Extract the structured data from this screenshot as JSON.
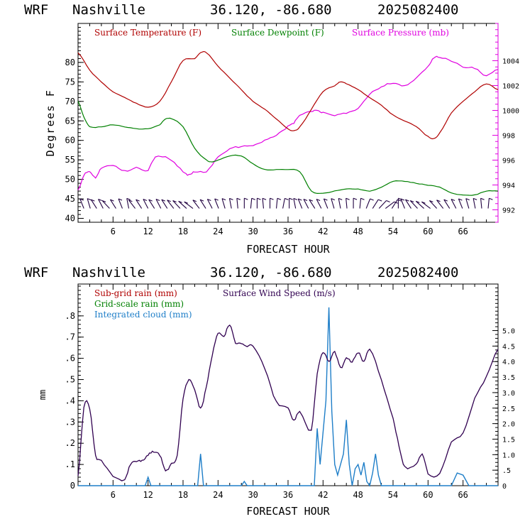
{
  "header": {
    "model": "WRF",
    "location": "Nashville",
    "coords": "36.120, -86.680",
    "run": "2025082400"
  },
  "chart_data": [
    {
      "type": "line",
      "xlabel": "FORECAST HOUR",
      "ylabel": "Degrees F",
      "xlim": [
        0,
        72
      ],
      "ylim": [
        39,
        90
      ],
      "y2lim": [
        991,
        1007
      ],
      "x_ticks": [
        "6",
        "12",
        "18",
        "24",
        "30",
        "36",
        "42",
        "48",
        "54",
        "60",
        "66"
      ],
      "y_ticks": [
        "40",
        "45",
        "50",
        "55",
        "60",
        "65",
        "70",
        "75",
        "80"
      ],
      "y2_ticks": [
        "992",
        "994",
        "996",
        "998",
        "1000",
        "1002",
        "1004"
      ],
      "legend": [
        "Surface Temperature (F)",
        "Surface Dewpoint (F)",
        "Surface Pressure (mb)"
      ],
      "colors": {
        "temperature": "#b00000",
        "dewpoint": "#008000",
        "pressure": "#e000e0",
        "wind_barbs": "#200040"
      },
      "series": [
        {
          "name": "Surface Temperature (F)",
          "axis": "left",
          "x": [
            0,
            2,
            4,
            6,
            8,
            10,
            12,
            14,
            16,
            18,
            20,
            21,
            22,
            24,
            26,
            28,
            30,
            32,
            34,
            36,
            37,
            38,
            40,
            42,
            44,
            45,
            46,
            48,
            50,
            52,
            54,
            56,
            58,
            60,
            61,
            62,
            64,
            66,
            68,
            70,
            72
          ],
          "values": [
            82.5,
            78,
            75,
            72.5,
            71,
            69.5,
            68.5,
            70,
            75,
            80.5,
            81,
            82.5,
            82.5,
            79,
            76,
            73,
            70,
            68,
            65.5,
            63,
            62.5,
            63.5,
            68,
            72.5,
            74,
            75,
            74.5,
            73,
            71,
            69,
            66.5,
            65,
            63.5,
            61,
            60.5,
            62,
            67,
            70,
            72.5,
            74.5,
            73
          ]
        },
        {
          "name": "Surface Dewpoint (F)",
          "axis": "left",
          "x": [
            0,
            1,
            2,
            4,
            6,
            8,
            10,
            12,
            14,
            15,
            16,
            18,
            20,
            22,
            23,
            24,
            26,
            28,
            30,
            32,
            34,
            36,
            38,
            40,
            42,
            44,
            46,
            48,
            50,
            52,
            54,
            56,
            58,
            60,
            62,
            64,
            66,
            68,
            70,
            72
          ],
          "values": [
            70,
            66,
            63.5,
            63.5,
            64,
            63.5,
            63,
            63,
            64,
            65.5,
            65.5,
            63.5,
            58,
            55,
            54.5,
            55,
            56,
            56,
            54,
            52.5,
            52.5,
            52.5,
            52,
            47,
            46.5,
            47,
            47.5,
            47.5,
            47,
            48,
            49.5,
            49.5,
            49,
            48.5,
            48,
            46.5,
            46,
            46,
            47,
            47
          ]
        },
        {
          "name": "Surface Pressure (mb)",
          "axis": "right",
          "x": [
            0,
            1,
            2,
            3,
            4,
            6,
            8,
            10,
            12,
            13,
            14,
            16,
            18,
            19,
            20,
            22,
            24,
            26,
            28,
            30,
            32,
            34,
            36,
            37,
            38,
            40,
            41,
            42,
            44,
            46,
            48,
            50,
            52,
            54,
            56,
            58,
            60,
            61,
            62,
            64,
            66,
            68,
            70,
            72
          ],
          "values": [
            993.6,
            994.8,
            995.1,
            994.6,
            995.4,
            995.6,
            995.1,
            995.4,
            995.2,
            996.1,
            996.3,
            996,
            995.1,
            994.8,
            995.1,
            995.1,
            996.2,
            996.9,
            997.1,
            997.2,
            997.6,
            998,
            998.7,
            999,
            999.6,
            999.9,
            1000,
            999.8,
            999.6,
            999.8,
            1000.2,
            1001.3,
            1001.9,
            1002.2,
            1002,
            1002.6,
            1003.5,
            1004.2,
            1004.3,
            1004,
            1003.5,
            1003.4,
            1002.8,
            1003.3
          ]
        }
      ]
    },
    {
      "type": "line",
      "xlabel": "FORECAST HOUR",
      "ylabel": "mm",
      "xlim": [
        0,
        72
      ],
      "ylim": [
        0,
        0.95
      ],
      "y2lim": [
        0,
        6.5
      ],
      "x_ticks": [
        "6",
        "12",
        "18",
        "24",
        "30",
        "36",
        "42",
        "48",
        "54",
        "60",
        "66"
      ],
      "y_ticks": [
        "0",
        ".1",
        ".2",
        ".3",
        ".4",
        ".5",
        ".6",
        ".7",
        ".8"
      ],
      "y2_ticks": [
        "0",
        ".5",
        "1.0",
        "1.5",
        "2.0",
        "2.5",
        "3.0",
        "3.5",
        "4.0",
        "4.5",
        "5.0"
      ],
      "legend": [
        "Sub-grid rain (mm)",
        "Surface Wind Speed (m/s)",
        "Grid-scale rain (mm)",
        "Integrated cloud (mm)"
      ],
      "colors": {
        "subgrid_rain": "#b00000",
        "wind_speed": "#300050",
        "gridscale_rain": "#008000",
        "cloud": "#1e7ec8"
      },
      "series": [
        {
          "name": "Surface Wind Speed (m/s)",
          "axis": "right",
          "x": [
            0,
            1,
            2,
            3,
            4,
            6,
            8,
            9,
            10,
            11,
            12,
            13,
            14,
            15,
            16,
            17,
            18,
            19,
            20,
            21,
            22,
            23,
            24,
            25,
            26,
            27,
            28,
            29,
            30,
            32,
            34,
            36,
            37,
            38,
            40,
            41,
            42,
            43,
            44,
            45,
            46,
            47,
            48,
            49,
            50,
            52,
            54,
            55,
            56,
            58,
            59,
            60,
            62,
            64,
            66,
            68,
            70,
            72
          ],
          "values": [
            0.3,
            2.5,
            2.5,
            1.0,
            0.8,
            0.3,
            0.2,
            0.7,
            0.8,
            0.8,
            1.0,
            1.1,
            1.0,
            0.5,
            0.7,
            1.0,
            2.8,
            3.4,
            3.1,
            2.5,
            3.2,
            4.2,
            4.9,
            4.8,
            5.2,
            4.6,
            4.6,
            4.5,
            4.5,
            3.8,
            2.7,
            2.5,
            2.1,
            2.4,
            1.8,
            3.6,
            4.3,
            4.0,
            4.3,
            3.8,
            4.1,
            4.0,
            4.3,
            4.0,
            4.4,
            3.4,
            2.2,
            1.3,
            0.6,
            0.7,
            1.0,
            0.4,
            0.4,
            1.4,
            1.7,
            2.8,
            3.5,
            4.4
          ]
        },
        {
          "name": "Integrated cloud (mm)",
          "axis": "left",
          "x": [
            0,
            11.5,
            12,
            12.5,
            20.5,
            21,
            21.5,
            28,
            28.5,
            29,
            40.5,
            41,
            41.5,
            42,
            42.5,
            43,
            43.5,
            44,
            44.5,
            45,
            45.5,
            46,
            46.5,
            47,
            47.5,
            48,
            48.5,
            49,
            49.5,
            50,
            50.5,
            51,
            51.5,
            52,
            64,
            65,
            66,
            67,
            72
          ],
          "values": [
            0,
            0,
            0.04,
            0,
            0,
            0.15,
            0,
            0,
            0.02,
            0,
            0,
            0.27,
            0.1,
            0.25,
            0.4,
            0.84,
            0.35,
            0.1,
            0.05,
            0.1,
            0.15,
            0.31,
            0.1,
            0,
            0.08,
            0.1,
            0.05,
            0.11,
            0.02,
            0,
            0.06,
            0.15,
            0.05,
            0,
            0,
            0.06,
            0.05,
            0,
            0
          ]
        }
      ]
    }
  ]
}
